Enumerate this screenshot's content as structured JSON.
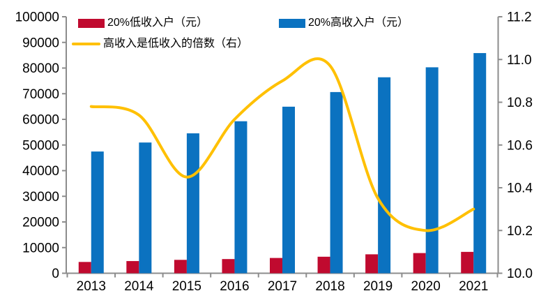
{
  "chart_data": {
    "type": "combo",
    "categories": [
      "2013",
      "2014",
      "2015",
      "2016",
      "2017",
      "2018",
      "2019",
      "2020",
      "2021"
    ],
    "series": [
      {
        "name": "20%低收入户（元）",
        "type": "bar",
        "axis": "left",
        "color": "#C00A2F",
        "values": [
          4402,
          4747,
          5221,
          5529,
          5958,
          6440,
          7380,
          7869,
          8333
        ]
      },
      {
        "name": "20%高收入户（元）",
        "type": "bar",
        "axis": "left",
        "color": "#0B72C0",
        "values": [
          47457,
          50968,
          54544,
          59259,
          64934,
          70640,
          76401,
          80294,
          85836
        ]
      },
      {
        "name": "高收入是低收入的倍数（右）",
        "type": "line",
        "smooth": true,
        "axis": "right",
        "color": "#FFC000",
        "values": [
          10.78,
          10.74,
          10.45,
          10.72,
          10.9,
          10.97,
          10.35,
          10.2,
          10.3
        ]
      }
    ],
    "left_axis": {
      "min": 0,
      "max": 100000,
      "step": 10000,
      "decimals": 0
    },
    "right_axis": {
      "min": 10.0,
      "max": 11.2,
      "step": 0.2,
      "decimals": 1
    },
    "title": "",
    "xlabel": "",
    "ylabel": "",
    "grid": false,
    "legend_position": "top-left",
    "axis_color": "#8C8C8C",
    "text_color": "#000000",
    "background_color": "#FFFFFF"
  }
}
